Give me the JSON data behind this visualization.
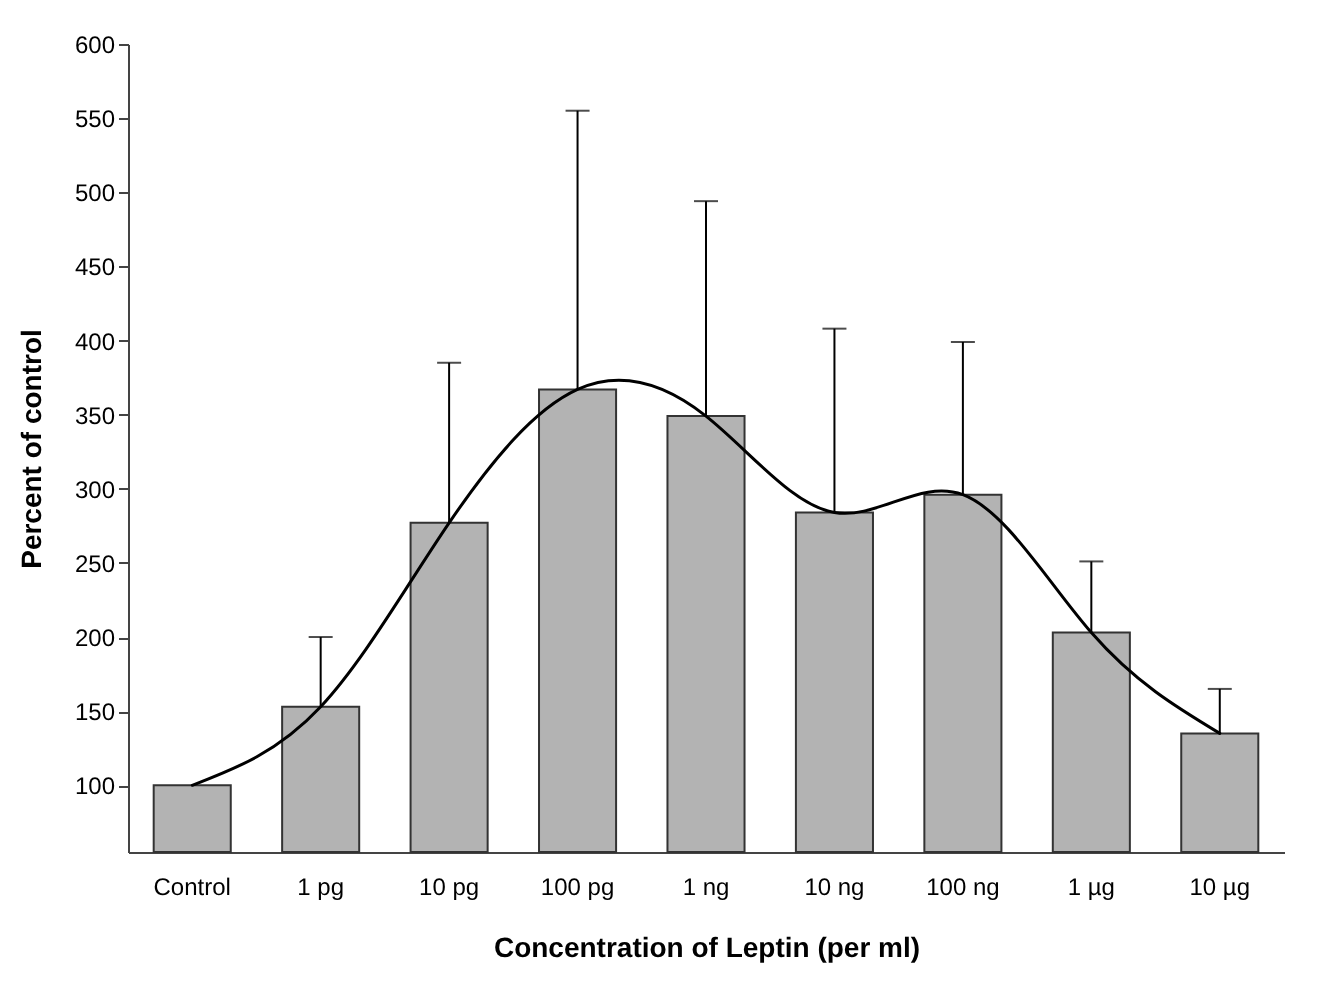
{
  "chart_data": {
    "type": "bar",
    "xlabel": "Concentration of Leptin (per ml)",
    "ylabel": "Percent of control",
    "categories": [
      "Control",
      "1 pg",
      "10 pg",
      "100 pg",
      "1 ng",
      "10 ng",
      "100 ng",
      "1 µg",
      "10 µg"
    ],
    "ylim": [
      55,
      600
    ],
    "yticks": [
      100,
      150,
      200,
      250,
      300,
      350,
      400,
      450,
      500,
      550,
      600
    ],
    "series": [
      {
        "color": "#b3b3b3",
        "values": [
          100,
          153,
          277,
          367,
          349,
          284,
          296,
          203,
          135
        ],
        "errors": [
          null,
          [
            153,
            200
          ],
          [
            277,
            385
          ],
          [
            367,
            555
          ],
          [
            349,
            494
          ],
          [
            284,
            408
          ],
          [
            296,
            399
          ],
          [
            203,
            251
          ],
          [
            135,
            165
          ]
        ]
      },
      {
        "type": "line",
        "color": "#000000",
        "values": [
          100,
          153,
          277,
          367,
          349,
          284,
          296,
          203,
          135
        ],
        "marker": "none",
        "line_style": "solid"
      }
    ]
  }
}
